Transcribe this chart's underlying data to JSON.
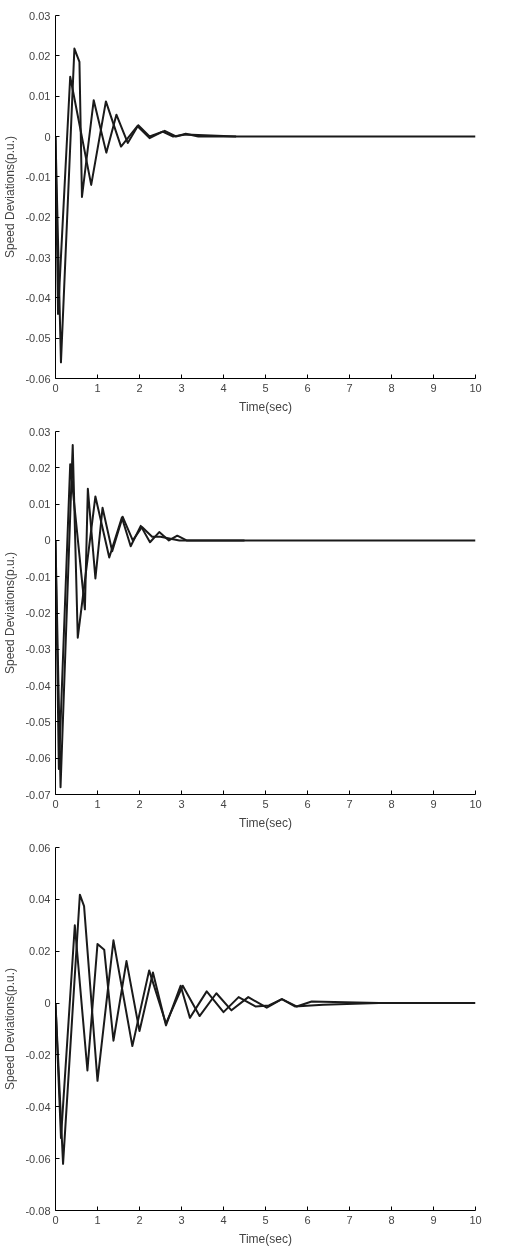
{
  "chart_data": [
    {
      "type": "line",
      "xlabel": "Time(sec)",
      "ylabel": "Speed Deviations(p.u.)",
      "xlim": [
        0,
        10
      ],
      "ylim": [
        -0.06,
        0.03
      ],
      "xticks": [
        0,
        1,
        2,
        3,
        4,
        5,
        6,
        7,
        8,
        9,
        10
      ],
      "yticks": [
        -0.06,
        -0.05,
        -0.04,
        -0.03,
        -0.02,
        -0.01,
        0,
        0.01,
        0.02,
        0.03
      ],
      "grid": false,
      "marker": "none",
      "line_style": "solid",
      "series": [
        {
          "color": "#1a1a1a",
          "x": [
            0,
            0.13,
            0.45,
            0.57,
            0.63,
            0.91,
            1.21,
            1.45,
            1.72,
            1.97,
            2.24,
            2.6,
            2.87,
            3.1,
            3.4,
            10
          ],
          "values": [
            0,
            -0.056,
            0.0218,
            0.0185,
            -0.015,
            0.009,
            -0.004,
            0.0054,
            -0.0016,
            0.0028,
            0,
            0.0014,
            0,
            0.0007,
            0,
            0
          ]
        },
        {
          "color": "#1a1a1a",
          "x": [
            0,
            0.06,
            0.35,
            0.85,
            1.2,
            1.56,
            1.95,
            2.24,
            2.55,
            2.8,
            3.1,
            4.3
          ],
          "values": [
            0,
            -0.044,
            0.0148,
            -0.012,
            0.0087,
            -0.0025,
            0.0026,
            -0.0004,
            0.0012,
            0,
            0.0005,
            0
          ]
        }
      ]
    },
    {
      "type": "line",
      "xlabel": "Time(sec)",
      "ylabel": "Speed Deviations(p.u.)",
      "xlim": [
        0,
        10
      ],
      "ylim": [
        -0.07,
        0.03
      ],
      "xticks": [
        0,
        1,
        2,
        3,
        4,
        5,
        6,
        7,
        8,
        9,
        10
      ],
      "yticks": [
        -0.07,
        -0.06,
        -0.05,
        -0.04,
        -0.03,
        -0.02,
        -0.01,
        0,
        0.01,
        0.02,
        0.03
      ],
      "grid": false,
      "marker": "none",
      "line_style": "solid",
      "series": [
        {
          "color": "#1a1a1a",
          "x": [
            0,
            0.12,
            0.41,
            0.53,
            0.95,
            1.28,
            1.58,
            1.79,
            2.03,
            2.25,
            2.47,
            2.7,
            2.9,
            3.12,
            10
          ],
          "values": [
            0,
            -0.068,
            0.0263,
            -0.0268,
            0.0121,
            -0.0047,
            0.0063,
            -0.0016,
            0.004,
            -0.0005,
            0.0023,
            0,
            0.0013,
            0,
            0
          ]
        },
        {
          "color": "#1a1a1a",
          "x": [
            0,
            0.08,
            0.35,
            0.7,
            0.77,
            0.95,
            1.12,
            1.35,
            1.6,
            1.84,
            2.06,
            2.3,
            2.5,
            2.95,
            4.5
          ],
          "values": [
            0,
            -0.063,
            0.021,
            -0.019,
            0.0142,
            -0.0105,
            0.009,
            -0.003,
            0.0065,
            0,
            0.0037,
            0.001,
            0.001,
            0,
            0
          ]
        }
      ]
    },
    {
      "type": "line",
      "xlabel": "Time(sec)",
      "ylabel": "Speed Deviations(p.u.)",
      "xlim": [
        0,
        10
      ],
      "ylim": [
        -0.08,
        0.06
      ],
      "xticks": [
        0,
        1,
        2,
        3,
        4,
        5,
        6,
        7,
        8,
        9,
        10
      ],
      "yticks": [
        -0.08,
        -0.06,
        -0.04,
        -0.02,
        0,
        0.02,
        0.04,
        0.06
      ],
      "grid": false,
      "marker": "none",
      "line_style": "solid",
      "series": [
        {
          "color": "#1a1a1a",
          "x": [
            0,
            0.18,
            0.58,
            0.68,
            1.0,
            1.38,
            1.83,
            2.23,
            2.63,
            3.03,
            3.43,
            3.83,
            4.19,
            4.59,
            5.03,
            5.39,
            5.74,
            6.1,
            7.7,
            10
          ],
          "values": [
            0,
            -0.062,
            0.0418,
            0.0374,
            -0.03,
            0.0242,
            -0.0166,
            0.0126,
            -0.0079,
            0.0067,
            -0.005,
            0.0038,
            -0.0028,
            0.0023,
            -0.0018,
            0.0015,
            -0.0013,
            0.0006,
            0,
            0
          ]
        },
        {
          "color": "#1a1a1a",
          "x": [
            0,
            0.13,
            0.46,
            0.76,
            1.0,
            1.16,
            1.38,
            1.69,
            2.0,
            2.32,
            2.63,
            2.98,
            3.2,
            3.6,
            4.0,
            4.36,
            4.76,
            5.08,
            5.39,
            5.7,
            6.37,
            7.7,
            8.6
          ],
          "values": [
            0,
            -0.052,
            0.03,
            -0.026,
            0.0228,
            0.0206,
            -0.0145,
            0.0162,
            -0.0108,
            0.0118,
            -0.0086,
            0.0067,
            -0.0057,
            0.0045,
            -0.0035,
            0.0023,
            -0.0013,
            -0.0009,
            0.0015,
            -0.0013,
            -0.0006,
            0,
            0
          ]
        }
      ]
    }
  ]
}
